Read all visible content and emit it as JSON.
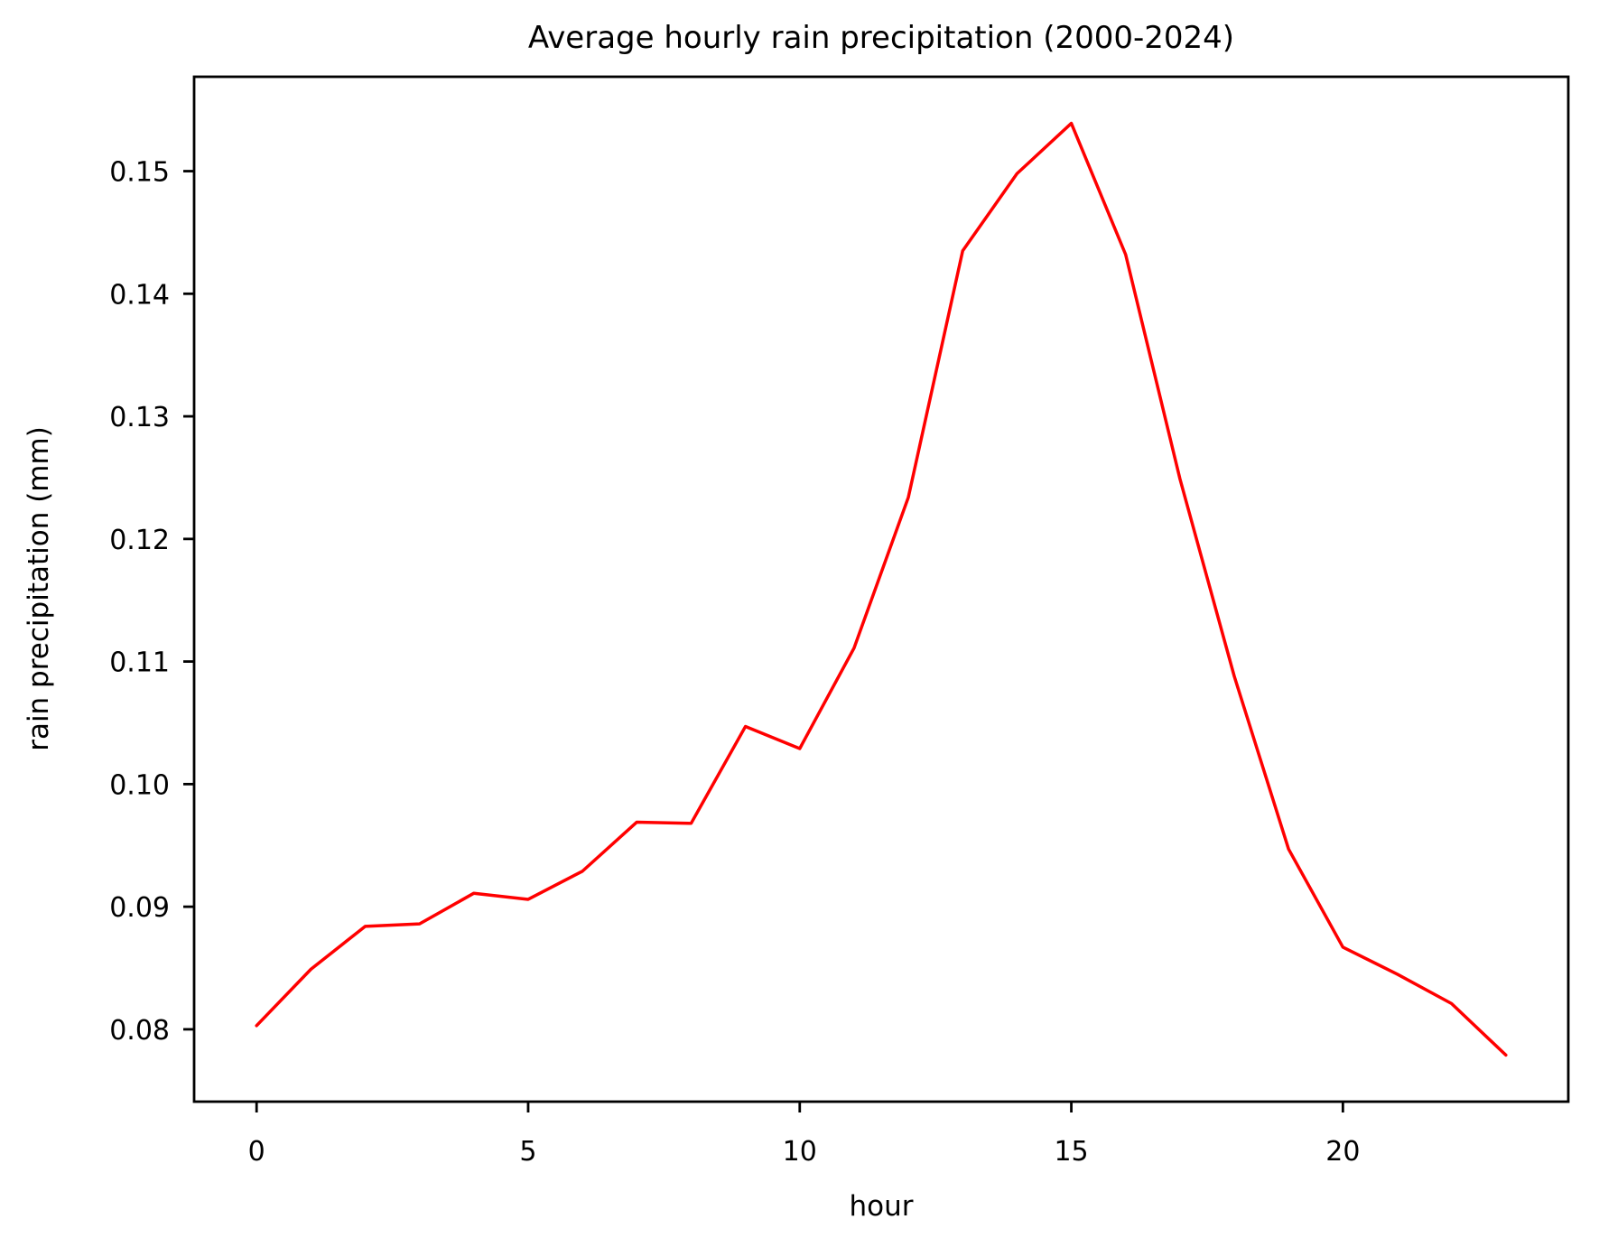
{
  "chart_data": {
    "type": "line",
    "title": "Average hourly rain precipitation (2000-2024)",
    "xlabel": "hour",
    "ylabel": "rain precipitation (mm)",
    "x": [
      0,
      1,
      2,
      3,
      4,
      5,
      6,
      7,
      8,
      9,
      10,
      11,
      12,
      13,
      14,
      15,
      16,
      17,
      18,
      19,
      20,
      21,
      22,
      23
    ],
    "series": [
      {
        "name": "average hourly rain precipitation",
        "color": "#ff0000",
        "line_width": 3.5,
        "values": [
          0.0803,
          0.0849,
          0.0884,
          0.0886,
          0.0911,
          0.0906,
          0.0929,
          0.0969,
          0.0968,
          0.1047,
          0.1029,
          0.1111,
          0.1234,
          0.1435,
          0.1498,
          0.1539,
          0.1432,
          0.1249,
          0.1088,
          0.0947,
          0.0867,
          0.0845,
          0.0821,
          0.0779
        ]
      }
    ],
    "xlim": [
      -1.15,
      24.15
    ],
    "ylim": [
      0.0741,
      0.1577
    ],
    "xticks": [
      0,
      5,
      10,
      15,
      20
    ],
    "xtick_labels": [
      "0",
      "5",
      "10",
      "15",
      "20"
    ],
    "yticks": [
      0.08,
      0.09,
      0.1,
      0.11,
      0.12,
      0.13,
      0.14,
      0.15
    ],
    "ytick_labels": [
      "0.08",
      "0.09",
      "0.10",
      "0.11",
      "0.12",
      "0.13",
      "0.14",
      "0.15"
    ],
    "grid": false,
    "legend": false,
    "background_color": "#ffffff",
    "spine_color": "#000000",
    "tick_color": "#000000"
  }
}
